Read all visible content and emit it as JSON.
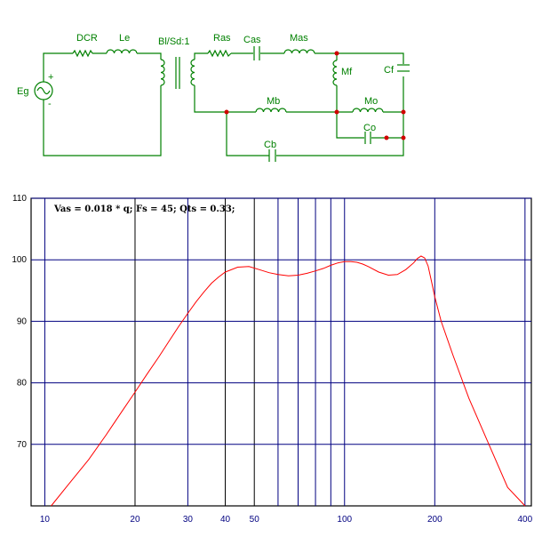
{
  "circuit": {
    "labels": {
      "eg": "Eg",
      "plus": "+",
      "minus": "-",
      "dcr": "DCR",
      "le": "Le",
      "bl": "Bl/Sd:1",
      "ras": "Ras",
      "cas": "Cas",
      "mas": "Mas",
      "mf": "Mf",
      "cf": "Cf",
      "mb": "Mb",
      "mo": "Mo",
      "co": "Co",
      "cb": "Cb"
    },
    "colors": {
      "wire": "#008000",
      "node": "#d00000"
    }
  },
  "chart_data": {
    "type": "line",
    "annotation": "Vas = 0.018 * q; Fs = 45; Qts = 0.33;",
    "xscale": "log",
    "xlim": [
      9,
      420
    ],
    "ylim": [
      60,
      110
    ],
    "x_ticks": [
      10,
      20,
      30,
      40,
      50,
      100,
      200,
      400
    ],
    "x_ticklabels": [
      "10",
      "20",
      "30",
      "40",
      "50",
      "100",
      "200",
      "400"
    ],
    "y_ticks": [
      70,
      80,
      90,
      100,
      110
    ],
    "y_ticklabels": [
      "70",
      "80",
      "90",
      "100",
      "110"
    ],
    "vertical_gridlines": [
      10,
      20,
      30,
      40,
      50,
      60,
      70,
      80,
      90,
      100,
      200,
      400
    ],
    "horizontal_gridlines": [
      70,
      80,
      90,
      100,
      110
    ],
    "grid_color": "#000080",
    "tick_label_color_x": "#000080",
    "series": [
      {
        "color": "#ff0000",
        "x": [
          10.5,
          12,
          14,
          16,
          18,
          20,
          22,
          24,
          26,
          28,
          30,
          32,
          34,
          36,
          38,
          40,
          44,
          48,
          52,
          56,
          60,
          65,
          70,
          75,
          80,
          85,
          90,
          95,
          100,
          105,
          110,
          115,
          120,
          130,
          140,
          150,
          160,
          170,
          175,
          180,
          185,
          190,
          195,
          200,
          210,
          230,
          260,
          300,
          350,
          400
        ],
        "y": [
          60,
          63.5,
          67.5,
          71.5,
          75.2,
          78.5,
          81.5,
          84.2,
          86.8,
          89.2,
          91.3,
          93.2,
          94.8,
          96.2,
          97.2,
          98.0,
          98.8,
          98.9,
          98.4,
          97.9,
          97.6,
          97.4,
          97.5,
          97.8,
          98.2,
          98.6,
          99.1,
          99.5,
          99.7,
          99.7,
          99.6,
          99.3,
          98.9,
          98.0,
          97.5,
          97.6,
          98.4,
          99.5,
          100.2,
          100.6,
          100.3,
          99.0,
          96.5,
          94.0,
          90.0,
          84.5,
          77.5,
          70.5,
          63.0,
          57.0
        ]
      }
    ]
  }
}
